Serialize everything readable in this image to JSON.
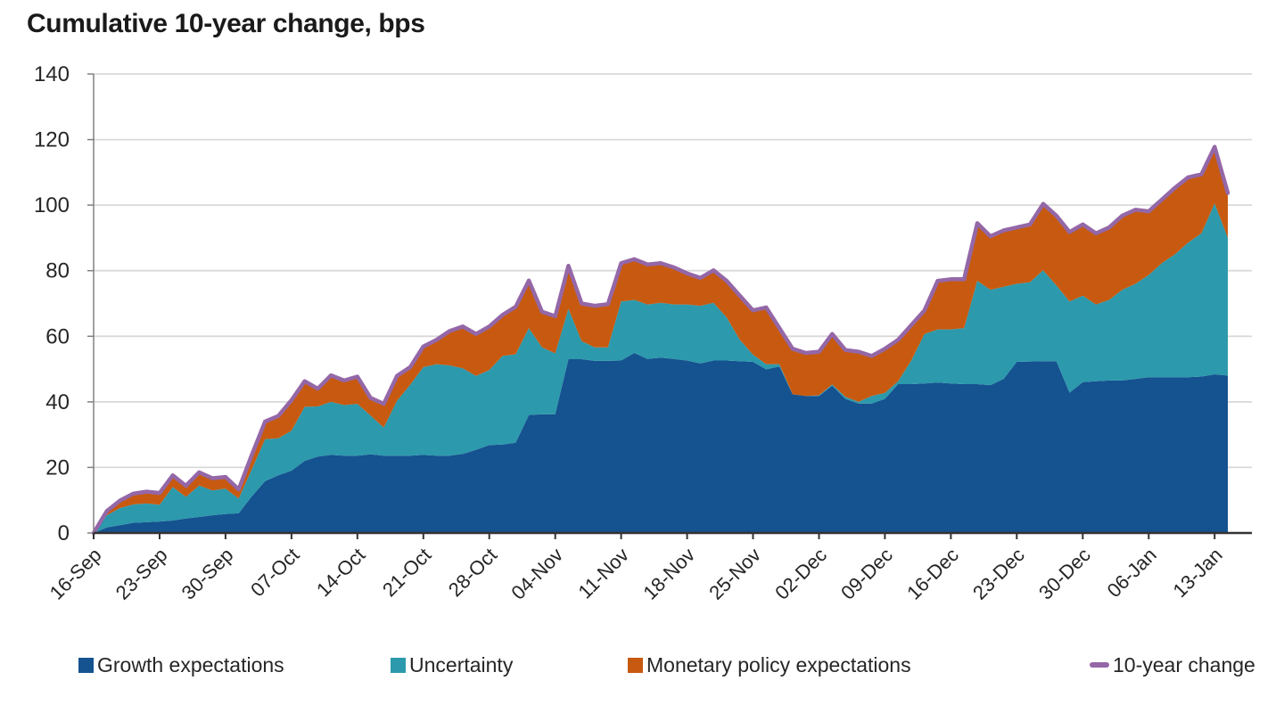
{
  "title": "Cumulative 10-year change, bps",
  "chart_data": {
    "type": "area",
    "stacked": true,
    "unit": "bps",
    "grid": "horizontal",
    "legend_position": "bottom",
    "x_tick_labels": [
      "16-Sep",
      "23-Sep",
      "30-Sep",
      "07-Oct",
      "14-Oct",
      "21-Oct",
      "28-Oct",
      "04-Nov",
      "11-Nov",
      "18-Nov",
      "25-Nov",
      "02-Dec",
      "09-Dec",
      "16-Dec",
      "23-Dec",
      "30-Dec",
      "06-Jan",
      "13-Jan"
    ],
    "points_per_tick": 5,
    "y_axis": {
      "min": 0,
      "max": 140,
      "step": 20,
      "tick_labels": [
        "0",
        "20",
        "40",
        "60",
        "80",
        "100",
        "120",
        "140"
      ]
    },
    "series": [
      {
        "name": "Growth expectations",
        "color": "#155290",
        "values": [
          0,
          1.7,
          2.4,
          3.1,
          3.3,
          3.5,
          3.8,
          4.4,
          4.9,
          5.4,
          5.8,
          6,
          11.2,
          15.8,
          17.6,
          19,
          22,
          23.3,
          23.8,
          23.6,
          23.6,
          24,
          23.6,
          23.6,
          23.6,
          23.8,
          23.6,
          23.6,
          24.1,
          25.4,
          26.8,
          27,
          27.5,
          36,
          36.2,
          36.2,
          53,
          53,
          52.5,
          52.5,
          52.6,
          54.9,
          53.1,
          53.5,
          53.1,
          52.6,
          51.7,
          52.6,
          52.6,
          52.4,
          52.2,
          49.9,
          50.8,
          42.3,
          41.8,
          41.8,
          44.9,
          40.9,
          39.5,
          39.5,
          40.9,
          45.4,
          45.4,
          45.6,
          45.9,
          45.6,
          45.4,
          45.4,
          45.1,
          47,
          52.2,
          52.3,
          52.4,
          52.4,
          42.8,
          46,
          46.3,
          46.5,
          46.5,
          47,
          47.5,
          47.5,
          47.5,
          47.5,
          47.7,
          48.4,
          48
        ]
      },
      {
        "name": "Uncertainty",
        "color": "#2C99AC",
        "values": [
          0,
          3.7,
          5.2,
          5.6,
          5.7,
          5.1,
          10.2,
          6.6,
          9.6,
          7.6,
          7.7,
          4.5,
          8.3,
          12.8,
          11.3,
          12.2,
          16.5,
          15.3,
          16.2,
          15.4,
          15.8,
          11.8,
          8.6,
          16.7,
          21.6,
          26.8,
          27.9,
          27.5,
          26.1,
          22.5,
          22.9,
          27,
          27,
          26.5,
          20.4,
          18.6,
          15.4,
          5.5,
          4.1,
          4.1,
          18,
          16.2,
          16.6,
          16.7,
          16.6,
          17.1,
          17.6,
          17.6,
          13.1,
          6.5,
          2.2,
          1.6,
          0.7,
          0,
          0,
          0.2,
          0.4,
          0.6,
          0.5,
          2.3,
          1.8,
          0.9,
          7.2,
          15.1,
          16.2,
          16.5,
          17.1,
          31.5,
          29.1,
          28.1,
          23.8,
          24.2,
          27.7,
          23.1,
          27.8,
          26.4,
          23.4,
          24.6,
          27.7,
          29,
          31.2,
          34.8,
          37.5,
          41.1,
          43.7,
          52.1,
          42
        ]
      },
      {
        "name": "Monetary policy expectations",
        "color": "#C75A10",
        "values": [
          0,
          1.3,
          2.3,
          3.3,
          3.6,
          3.6,
          3.6,
          3.4,
          4,
          3.7,
          3.6,
          2.8,
          4.4,
          5.4,
          6.8,
          9.3,
          7.8,
          5.4,
          8.1,
          7.5,
          8.3,
          5.4,
          7.2,
          7.6,
          5.4,
          6.3,
          7.4,
          10.5,
          12.8,
          12.8,
          13.3,
          12.5,
          14.5,
          14.5,
          10.9,
          11.3,
          13.1,
          11.5,
          12.7,
          13.2,
          11.7,
          12.4,
          12.2,
          12.1,
          11.3,
          9.5,
          8.5,
          9.9,
          11.2,
          13.5,
          13.5,
          17.3,
          11,
          13.9,
          13.1,
          13.3,
          15.4,
          14.3,
          15.3,
          12.2,
          13.5,
          12.6,
          10.8,
          7.2,
          14.8,
          15.3,
          14.9,
          17.6,
          16.3,
          17.2,
          17.2,
          17.6,
          20.3,
          21.3,
          21.2,
          21.7,
          21.7,
          22.1,
          22.6,
          22.6,
          19.4,
          19.4,
          20.3,
          19.9,
          18.3,
          17.3,
          13.7
        ]
      }
    ],
    "line_series": {
      "name": "10-year change",
      "color": "#9467A7",
      "values": [
        0,
        6.7,
        9.9,
        12,
        12.6,
        12.2,
        17.6,
        14.4,
        18.5,
        16.7,
        17.1,
        13.3,
        23.9,
        34,
        35.7,
        40.5,
        46.3,
        44,
        48.1,
        46.5,
        47.7,
        41.2,
        39.4,
        47.9,
        50.6,
        56.9,
        58.9,
        61.6,
        63,
        60.7,
        63,
        66.5,
        69,
        77,
        67.5,
        66.1,
        81.5,
        70,
        69.3,
        69.8,
        82.3,
        83.5,
        81.9,
        82.3,
        81,
        79.2,
        77.8,
        80.1,
        76.9,
        72.4,
        67.9,
        68.8,
        62.5,
        56.2,
        54.9,
        55.3,
        60.7,
        55.8,
        55.3,
        54,
        56.2,
        58.9,
        63.4,
        67.9,
        76.9,
        77.4,
        77.4,
        94.5,
        90.5,
        92.3,
        93.2,
        94.1,
        100.4,
        96.8,
        91.8,
        94.1,
        91.4,
        93.2,
        96.8,
        98.6,
        98.1,
        101.7,
        105.3,
        108.5,
        109.4,
        117.8,
        103.7
      ]
    },
    "colors": {
      "gridline": "#D9D9D9",
      "y_axis_line": "#808080",
      "x_axis_line": "#333333",
      "tick_text": "#262626"
    }
  }
}
